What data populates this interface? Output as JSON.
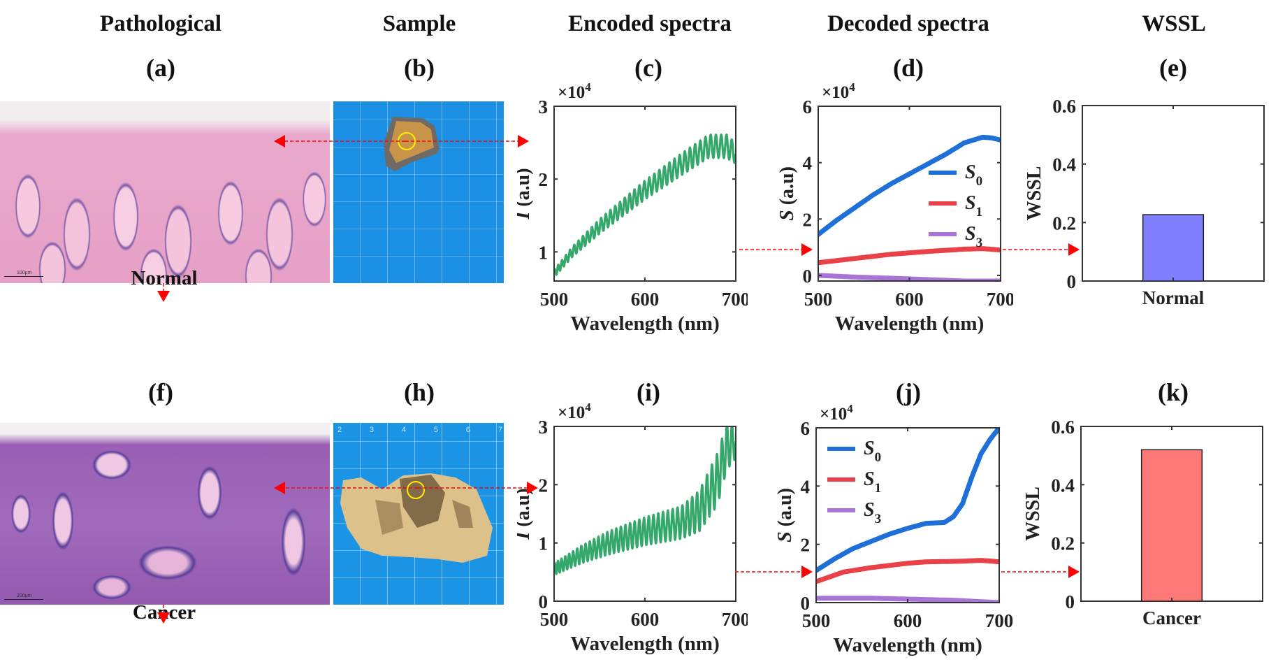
{
  "columns": {
    "pathological": "Pathological",
    "sample": "Sample",
    "encoded": "Encoded spectra",
    "decoded": "Decoded spectra",
    "wssl": "WSSL"
  },
  "panels": {
    "a": "(a)",
    "b": "(b)",
    "c": "(c)",
    "d": "(d)",
    "e": "(e)",
    "f": "(f)",
    "h": "(h)",
    "i": "(i)",
    "j": "(j)",
    "k": "(k)"
  },
  "rows": {
    "normal": {
      "label": "Normal",
      "scalebar": "100μm"
    },
    "cancer": {
      "label": "Cancer",
      "scalebar": "200μm",
      "ruler_digits": [
        "2",
        "3",
        "4",
        "5",
        "6",
        "7"
      ]
    }
  },
  "colors": {
    "encoded_line": "#33a86a",
    "s0": "#1f6fd8",
    "s1": "#e8414a",
    "s3": "#a874d8",
    "bar_normal": "#7f7fff",
    "bar_cancer": "#ff7878",
    "arrow": "#ff0000",
    "marker_circle": "#ffee00"
  },
  "chart_data": [
    {
      "id": "c",
      "type": "line",
      "title": "(c)",
      "xlabel": "Wavelength (nm)",
      "ylabel": "I (a.u)",
      "y_multiplier": "×10^4",
      "xlim": [
        500,
        700
      ],
      "ylim": [
        0.6,
        3
      ],
      "xticks": [
        "500",
        "600",
        "700"
      ],
      "yticks": [
        {
          "v": 1,
          "label": "1"
        },
        {
          "v": 2,
          "label": "2"
        },
        {
          "v": 3,
          "label": "3"
        }
      ],
      "series": [
        {
          "name": "I",
          "color_key": "encoded_line",
          "oscillating": true,
          "oscillation_periods": 38,
          "envelope_x": [
            500,
            520,
            550,
            600,
            640,
            670,
            690,
            700
          ],
          "envelope_mid": [
            0.7,
            1.0,
            1.35,
            1.85,
            2.2,
            2.45,
            2.45,
            2.35
          ],
          "envelope_amp": [
            0.05,
            0.07,
            0.1,
            0.13,
            0.15,
            0.16,
            0.16,
            0.14
          ]
        }
      ]
    },
    {
      "id": "d",
      "type": "line",
      "title": "(d)",
      "xlabel": "Wavelength (nm)",
      "ylabel": "S (a.u)",
      "y_multiplier": "×10^4",
      "xlim": [
        500,
        700
      ],
      "ylim": [
        -0.2,
        6
      ],
      "xticks": [
        "500",
        "600",
        "700"
      ],
      "yticks": [
        {
          "v": 0,
          "label": "0"
        },
        {
          "v": 2,
          "label": "2"
        },
        {
          "v": 4,
          "label": "4"
        },
        {
          "v": 6,
          "label": "6"
        }
      ],
      "legend": "right",
      "series": [
        {
          "name": "S0",
          "sub": "0",
          "color_key": "s0",
          "x": [
            500,
            520,
            540,
            560,
            580,
            600,
            620,
            640,
            660,
            680,
            690,
            700
          ],
          "y": [
            1.45,
            1.95,
            2.4,
            2.85,
            3.25,
            3.6,
            3.95,
            4.3,
            4.7,
            4.9,
            4.88,
            4.8
          ]
        },
        {
          "name": "S1",
          "sub": "1",
          "color_key": "s1",
          "x": [
            500,
            540,
            580,
            620,
            660,
            680,
            700
          ],
          "y": [
            0.45,
            0.6,
            0.75,
            0.85,
            0.93,
            0.95,
            0.9
          ]
        },
        {
          "name": "S3",
          "sub": "3",
          "color_key": "s3",
          "x": [
            500,
            540,
            580,
            620,
            660,
            700
          ],
          "y": [
            0.0,
            -0.06,
            -0.1,
            -0.15,
            -0.2,
            -0.2
          ]
        }
      ]
    },
    {
      "id": "e",
      "type": "bar",
      "title": "(e)",
      "ylabel": "WSSL",
      "categories": [
        "Normal"
      ],
      "values": [
        0.227
      ],
      "color_key": "bar_normal",
      "ylim": [
        0,
        0.6
      ],
      "yticks": [
        {
          "v": 0,
          "label": "0"
        },
        {
          "v": 0.2,
          "label": "0.2"
        },
        {
          "v": 0.4,
          "label": "0.4"
        },
        {
          "v": 0.6,
          "label": "0.6"
        }
      ]
    },
    {
      "id": "i",
      "type": "line",
      "title": "(i)",
      "xlabel": "Wavelength (nm)",
      "ylabel": "I (a.u)",
      "y_multiplier": "×10^4",
      "xlim": [
        500,
        700
      ],
      "ylim": [
        0,
        3
      ],
      "xticks": [
        "500",
        "600",
        "700"
      ],
      "yticks": [
        {
          "v": 0,
          "label": "0"
        },
        {
          "v": 1,
          "label": "1"
        },
        {
          "v": 2,
          "label": "2"
        },
        {
          "v": 3,
          "label": "3"
        }
      ],
      "series": [
        {
          "name": "I",
          "color_key": "encoded_line",
          "oscillating": true,
          "oscillation_periods": 40,
          "envelope_x": [
            500,
            530,
            560,
            600,
            640,
            660,
            680,
            690,
            700
          ],
          "envelope_mid": [
            0.55,
            0.8,
            1.0,
            1.2,
            1.35,
            1.55,
            2.1,
            2.65,
            2.75
          ],
          "envelope_amp": [
            0.1,
            0.15,
            0.2,
            0.24,
            0.28,
            0.35,
            0.45,
            0.4,
            0.3
          ]
        }
      ]
    },
    {
      "id": "j",
      "type": "line",
      "title": "(j)",
      "xlabel": "Wavelength (nm)",
      "ylabel": "S (a.u)",
      "y_multiplier": "×10^4",
      "xlim": [
        500,
        700
      ],
      "ylim": [
        0,
        6
      ],
      "xticks": [
        "500",
        "600",
        "700"
      ],
      "yticks": [
        {
          "v": 0,
          "label": "0"
        },
        {
          "v": 2,
          "label": "2"
        },
        {
          "v": 4,
          "label": "4"
        },
        {
          "v": 6,
          "label": "6"
        }
      ],
      "legend": "top-left",
      "series": [
        {
          "name": "S0",
          "sub": "0",
          "color_key": "s0",
          "x": [
            500,
            520,
            540,
            560,
            580,
            600,
            620,
            640,
            650,
            660,
            670,
            680,
            690,
            700
          ],
          "y": [
            1.1,
            1.5,
            1.85,
            2.1,
            2.35,
            2.55,
            2.72,
            2.75,
            2.95,
            3.4,
            4.3,
            5.1,
            5.6,
            6.0
          ]
        },
        {
          "name": "S1",
          "sub": "1",
          "color_key": "s1",
          "x": [
            500,
            530,
            560,
            600,
            620,
            660,
            680,
            700
          ],
          "y": [
            0.72,
            1.05,
            1.2,
            1.35,
            1.4,
            1.42,
            1.45,
            1.4
          ]
        },
        {
          "name": "S3",
          "sub": "3",
          "color_key": "s3",
          "x": [
            500,
            560,
            600,
            650,
            700
          ],
          "y": [
            0.15,
            0.15,
            0.12,
            0.08,
            0.0
          ]
        }
      ]
    },
    {
      "id": "k",
      "type": "bar",
      "title": "(k)",
      "ylabel": "WSSL",
      "categories": [
        "Cancer"
      ],
      "values": [
        0.52
      ],
      "color_key": "bar_cancer",
      "ylim": [
        0,
        0.6
      ],
      "yticks": [
        {
          "v": 0,
          "label": "0"
        },
        {
          "v": 0.2,
          "label": "0.2"
        },
        {
          "v": 0.4,
          "label": "0.4"
        },
        {
          "v": 0.6,
          "label": "0.6"
        }
      ]
    }
  ]
}
